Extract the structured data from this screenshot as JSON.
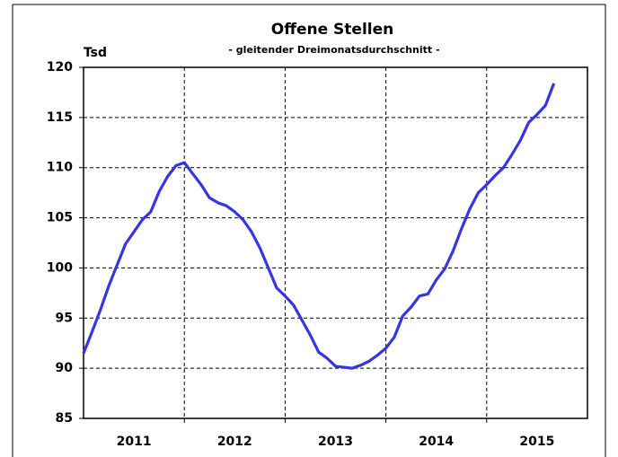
{
  "chart_data": {
    "type": "line",
    "title": "Offene Stellen",
    "subtitle": "- gleitender Dreimonatsdurchschnitt -",
    "ylabel": "Tsd",
    "categories": [
      null,
      null,
      null,
      null,
      null,
      null,
      "2011",
      null,
      null,
      null,
      null,
      null,
      null,
      null,
      null,
      null,
      null,
      null,
      "2012",
      null,
      null,
      null,
      null,
      null,
      null,
      null,
      null,
      null,
      null,
      null,
      "2013",
      null,
      null,
      null,
      null,
      null,
      null,
      null,
      null,
      null,
      null,
      null,
      "2014",
      null,
      null,
      null,
      null,
      null,
      null,
      null,
      null,
      null,
      null,
      null,
      "2015",
      null,
      null,
      null,
      null,
      null
    ],
    "series": [
      {
        "color": "#3636e0",
        "values": [
          91.5,
          93.6,
          95.8,
          98.2,
          100.3,
          102.4,
          103.6,
          104.8,
          105.6,
          107.6,
          109.1,
          110.2,
          110.5,
          109.4,
          108.3,
          107,
          106.5,
          106.2,
          105.6,
          104.8,
          103.6,
          102,
          100,
          98,
          97.2,
          96.3,
          94.8,
          93.3,
          91.6,
          91,
          90.2,
          90.1,
          90,
          90.3,
          90.7,
          91.3,
          92,
          93.1,
          95.2,
          96.1,
          97.2,
          97.4,
          98.8,
          99.9,
          101.7,
          103.9,
          105.9,
          107.5,
          108.3,
          109.2,
          110,
          111.3,
          112.7,
          114.5,
          115.3,
          116.2,
          118.4,
          null,
          null,
          null
        ]
      }
    ],
    "ylim": [
      85,
      120
    ],
    "yticks": [
      85,
      90,
      95,
      100,
      105,
      110,
      115,
      120
    ],
    "grid": true
  }
}
